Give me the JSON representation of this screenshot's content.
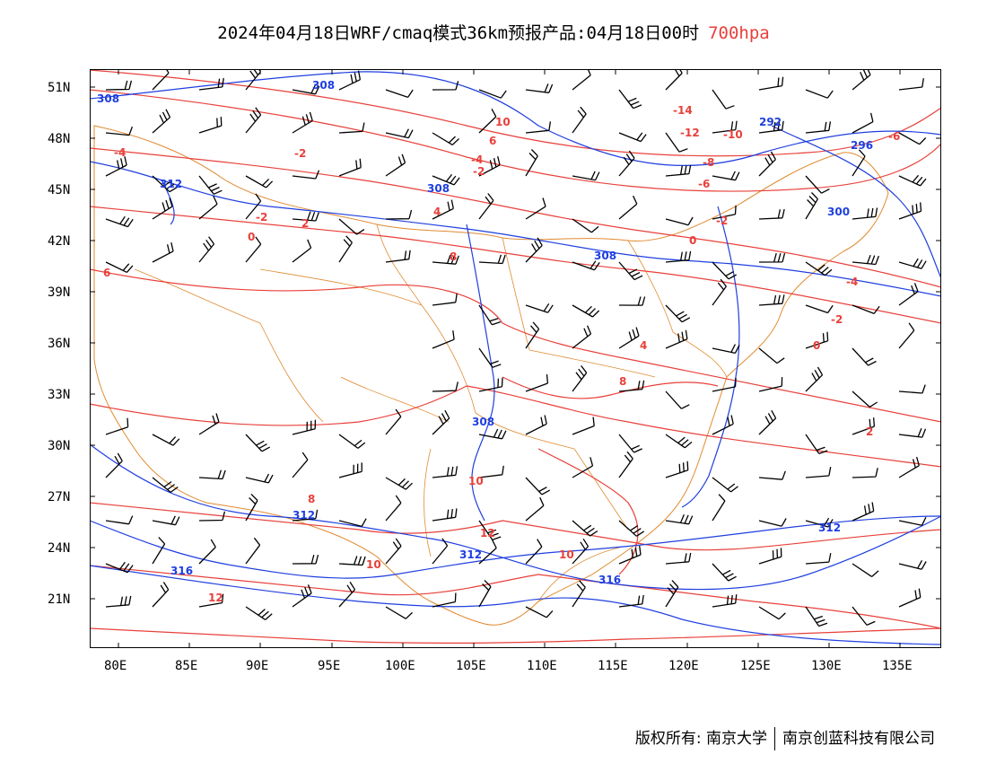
{
  "title": {
    "main": "2024年04月18日WRF/cmaq模式36km预报产品:04月18日00时",
    "level": "700hpa",
    "level_color": "#e8403a"
  },
  "axes": {
    "lat_ticks": [
      "51N",
      "48N",
      "45N",
      "42N",
      "39N",
      "36N",
      "33N",
      "30N",
      "27N",
      "24N",
      "21N"
    ],
    "lon_ticks": [
      "80E",
      "85E",
      "90E",
      "95E",
      "100E",
      "105E",
      "110E",
      "115E",
      "120E",
      "125E",
      "130E",
      "135E"
    ]
  },
  "colors": {
    "temperature_contour": "#e8403a",
    "height_contour": "#1f3fe0",
    "boundary": "#e08a30",
    "wind_barb": "#000000"
  },
  "temperature_labels": [
    "-14",
    "-12",
    "-10",
    "-8",
    "-6",
    "-6",
    "-4",
    "-4",
    "-4",
    "-2",
    "-2",
    "-2",
    "-2",
    "-2",
    "0",
    "0",
    "0",
    "2",
    "2",
    "4",
    "4",
    "6",
    "6",
    "8",
    "8",
    "8",
    "10",
    "10",
    "10",
    "10",
    "12",
    "12"
  ],
  "height_labels": [
    "292",
    "296",
    "300",
    "308",
    "308",
    "308",
    "308",
    "308",
    "312",
    "312",
    "312",
    "312",
    "316",
    "316"
  ],
  "footer": {
    "copyright_label": "版权所有:",
    "org_1": "南京大学",
    "org_2": "南京创蓝科技有限公司"
  }
}
